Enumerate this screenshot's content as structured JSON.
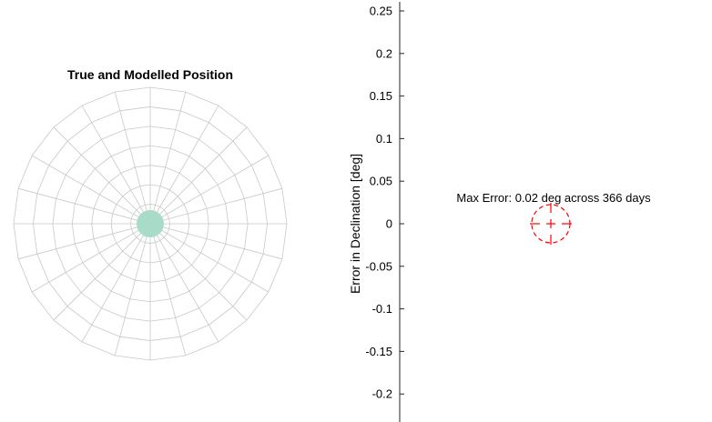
{
  "chart_data": [
    {
      "type": "polar",
      "title": "True and Modelled Position",
      "grid": "on",
      "rings": 7,
      "spokes": 24,
      "series": [
        {
          "values": [
            [
              0,
              0
            ]
          ],
          "color": "#a8dcc8"
        }
      ],
      "colors": {
        "grid": "#c8c8c8",
        "marker": "#a8dcc8"
      }
    },
    {
      "type": "scatter",
      "title": "",
      "xlabel": "",
      "ylabel": "Error in Declination [deg]",
      "ylim": [
        -0.235,
        0.26
      ],
      "yticks": [
        0.25,
        0.2,
        0.15,
        0.1,
        0.05,
        0,
        -0.05,
        -0.1,
        -0.15,
        -0.2
      ],
      "ytick_labels": [
        "0.25",
        "0.2",
        "0.15",
        "0.1",
        "0.05",
        "0",
        "-0.05",
        "-0.1",
        "-0.15",
        "-0.2"
      ],
      "series": [
        {
          "marker": "crosshair-target",
          "color": "#ff0000",
          "values": [
            [
              0,
              0
            ]
          ]
        }
      ],
      "annotation": "Max Error: 0.02 deg across 366 days",
      "colors": {
        "axis": "#262626",
        "marker": "#ff0000"
      }
    }
  ]
}
